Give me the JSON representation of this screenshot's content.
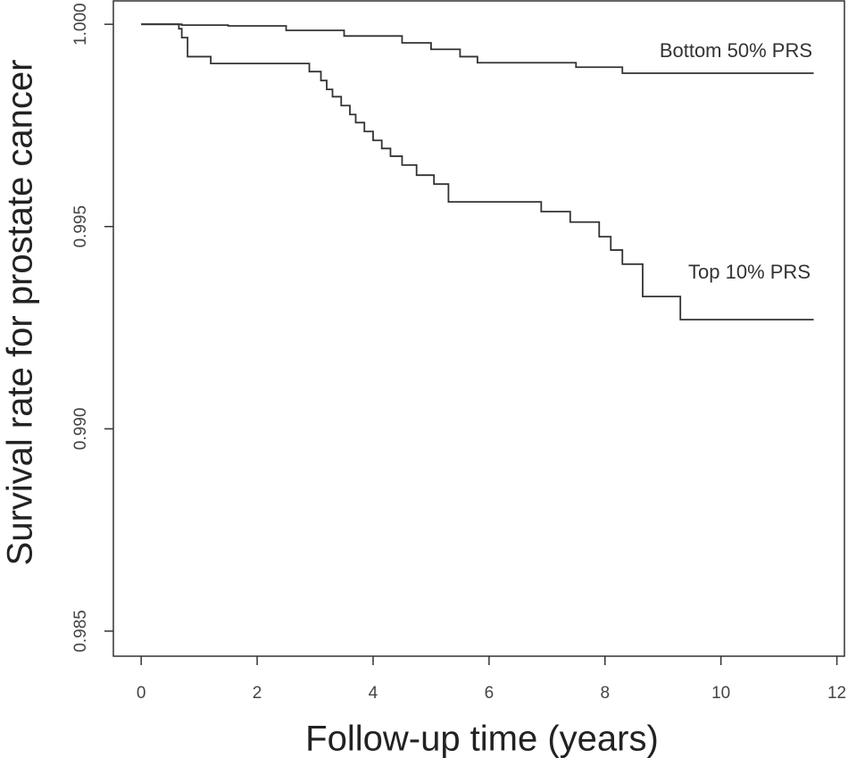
{
  "chart_data": {
    "type": "step",
    "x_label": "Follow-up time (years)",
    "y_label": "Survival rate for prostate cancer",
    "xlim": [
      -0.48,
      12.13
    ],
    "ylim": [
      0.98438,
      1.0006
    ],
    "xticks": [
      0,
      2,
      4,
      6,
      8,
      10,
      12
    ],
    "yticks": [
      {
        "value": 1,
        "label": "1.000"
      },
      0.995,
      {
        "value": 0.99,
        "label": "0.990"
      },
      0.985
    ],
    "grid": false,
    "series": [
      {
        "name": "Bottom 50% PRS",
        "color": "#333333",
        "x": [
          0,
          0.7,
          1.5,
          2.5,
          3.5,
          4.5,
          5.0,
          5.5,
          5.8,
          7.5,
          8.3,
          11.6
        ],
        "values": [
          1.0,
          0.99998,
          0.99996,
          0.99985,
          0.99971,
          0.99954,
          0.99938,
          0.9992,
          0.99905,
          0.99894,
          0.99879,
          0.99879
        ]
      },
      {
        "name": "Top 10% PRS",
        "color": "#333333",
        "x": [
          0,
          0.65,
          0.7,
          0.8,
          1.2,
          2.9,
          3.1,
          3.2,
          3.3,
          3.45,
          3.6,
          3.7,
          3.85,
          4.0,
          4.15,
          4.3,
          4.5,
          4.75,
          5.05,
          5.3,
          6.9,
          7.4,
          7.9,
          8.1,
          8.3,
          8.65,
          9.3,
          11.6
        ],
        "values": [
          1.0,
          0.99989,
          0.99967,
          0.9992,
          0.99903,
          0.99883,
          0.99861,
          0.99839,
          0.99821,
          0.99799,
          0.99777,
          0.99757,
          0.99735,
          0.99713,
          0.99693,
          0.99674,
          0.99652,
          0.99627,
          0.99605,
          0.99561,
          0.99537,
          0.99511,
          0.99475,
          0.99442,
          0.99407,
          0.99327,
          0.9927,
          0.9927
        ]
      }
    ]
  }
}
